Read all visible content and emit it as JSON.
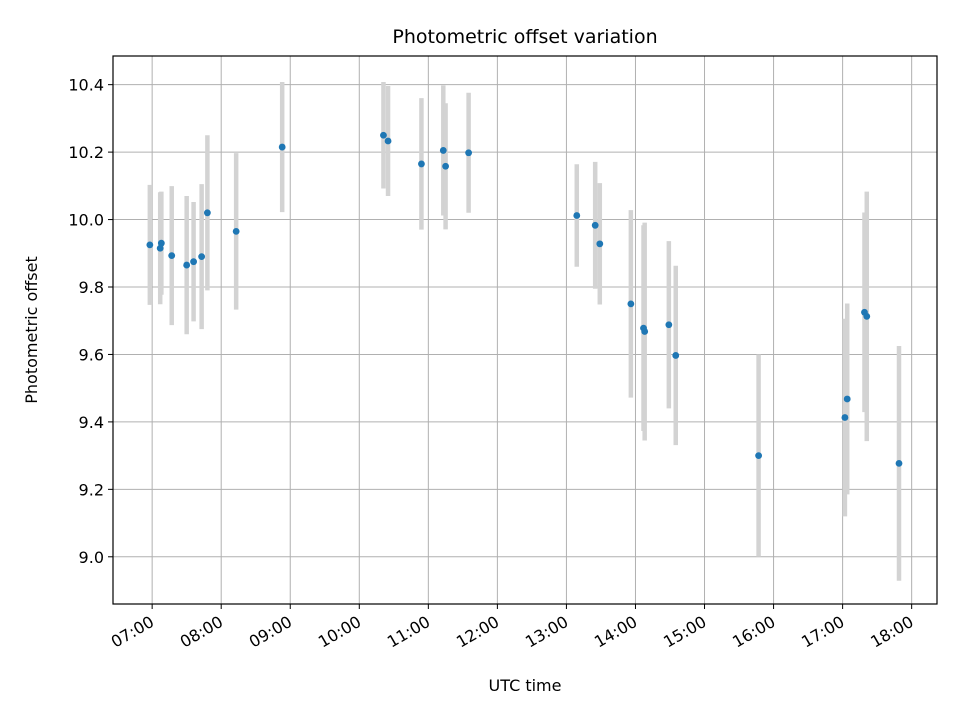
{
  "chart_data": {
    "type": "scatter",
    "title": "Photometric offset variation",
    "xlabel": "UTC time",
    "ylabel": "Photometric offset",
    "grid": true,
    "xlim_hours": [
      6.433,
      18.367
    ],
    "ylim": [
      8.86,
      10.485
    ],
    "xticks": [
      "07:00",
      "08:00",
      "09:00",
      "10:00",
      "11:00",
      "12:00",
      "13:00",
      "14:00",
      "15:00",
      "16:00",
      "17:00",
      "18:00"
    ],
    "yticks": [
      9.0,
      9.2,
      9.4,
      9.6,
      9.8,
      10.0,
      10.2,
      10.4
    ],
    "marker_color": "#1f77b4",
    "errorbar_color": "#d3d3d3",
    "points": [
      {
        "t": "06:58",
        "y": 9.925,
        "err": 0.178
      },
      {
        "t": "07:07",
        "y": 9.915,
        "err": 0.166
      },
      {
        "t": "07:08",
        "y": 9.93,
        "err": 0.153
      },
      {
        "t": "07:17",
        "y": 9.893,
        "err": 0.206
      },
      {
        "t": "07:30",
        "y": 9.865,
        "err": 0.205
      },
      {
        "t": "07:36",
        "y": 9.875,
        "err": 0.177
      },
      {
        "t": "07:43",
        "y": 9.89,
        "err": 0.215
      },
      {
        "t": "07:48",
        "y": 10.02,
        "err": 0.23
      },
      {
        "t": "08:13",
        "y": 9.965,
        "err": 0.232
      },
      {
        "t": "08:53",
        "y": 10.215,
        "err": 0.193
      },
      {
        "t": "10:21",
        "y": 10.25,
        "err": 0.158
      },
      {
        "t": "10:25",
        "y": 10.233,
        "err": 0.163
      },
      {
        "t": "10:54",
        "y": 10.165,
        "err": 0.195
      },
      {
        "t": "11:13",
        "y": 10.205,
        "err": 0.193
      },
      {
        "t": "11:15",
        "y": 10.158,
        "err": 0.187
      },
      {
        "t": "11:35",
        "y": 10.198,
        "err": 0.178
      },
      {
        "t": "13:09",
        "y": 10.012,
        "err": 0.152
      },
      {
        "t": "13:25",
        "y": 9.983,
        "err": 0.188
      },
      {
        "t": "13:29",
        "y": 9.928,
        "err": 0.18
      },
      {
        "t": "13:56",
        "y": 9.75,
        "err": 0.278
      },
      {
        "t": "14:07",
        "y": 9.678,
        "err": 0.305
      },
      {
        "t": "14:08",
        "y": 9.668,
        "err": 0.323
      },
      {
        "t": "14:29",
        "y": 9.688,
        "err": 0.248
      },
      {
        "t": "14:35",
        "y": 9.597,
        "err": 0.266
      },
      {
        "t": "15:47",
        "y": 9.3,
        "err": 0.3
      },
      {
        "t": "17:02",
        "y": 9.413,
        "err": 0.293
      },
      {
        "t": "17:04",
        "y": 9.468,
        "err": 0.283
      },
      {
        "t": "17:19",
        "y": 9.725,
        "err": 0.296
      },
      {
        "t": "17:21",
        "y": 9.713,
        "err": 0.37
      },
      {
        "t": "17:49",
        "y": 9.277,
        "err": 0.348
      }
    ]
  }
}
